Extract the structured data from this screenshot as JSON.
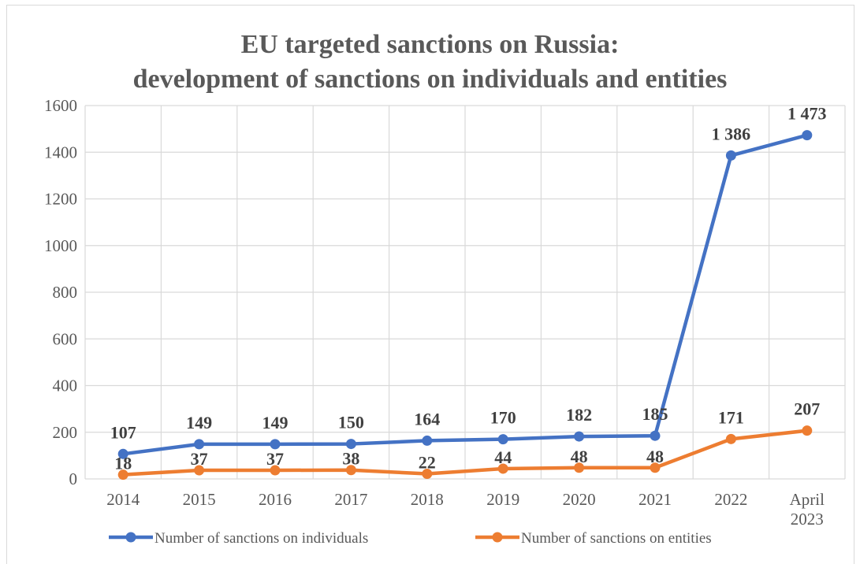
{
  "chart_data": {
    "type": "line",
    "title": [
      "EU targeted sanctions on Russia:",
      "development of sanctions on individuals and entities"
    ],
    "categories": [
      "2014",
      "2015",
      "2016",
      "2017",
      "2018",
      "2019",
      "2020",
      "2021",
      "2022",
      "April 2023"
    ],
    "category_lines": [
      [
        "2014"
      ],
      [
        "2015"
      ],
      [
        "2016"
      ],
      [
        "2017"
      ],
      [
        "2018"
      ],
      [
        "2019"
      ],
      [
        "2020"
      ],
      [
        "2021"
      ],
      [
        "2022"
      ],
      [
        "April",
        "2023"
      ]
    ],
    "ylim": [
      0,
      1600
    ],
    "yticks": [
      "0",
      "200",
      "400",
      "600",
      "800",
      "1000",
      "1200",
      "1400",
      "1600"
    ],
    "grid": true,
    "legend_position": "bottom",
    "series": [
      {
        "name": "Number of sanctions on individuals",
        "color": "#4472c4",
        "values": [
          107,
          149,
          149,
          150,
          164,
          170,
          182,
          185,
          1386,
          1473
        ],
        "data_labels": [
          "107",
          "149",
          "149",
          "150",
          "164",
          "170",
          "182",
          "185",
          "1 386",
          "1 473"
        ]
      },
      {
        "name": "Number of  sanctions on entities",
        "color": "#ed7d31",
        "values": [
          18,
          37,
          37,
          38,
          22,
          44,
          48,
          48,
          171,
          207
        ],
        "data_labels": [
          "18",
          "37",
          "37",
          "38",
          "22",
          "44",
          "48",
          "48",
          "171",
          "207"
        ]
      }
    ]
  }
}
